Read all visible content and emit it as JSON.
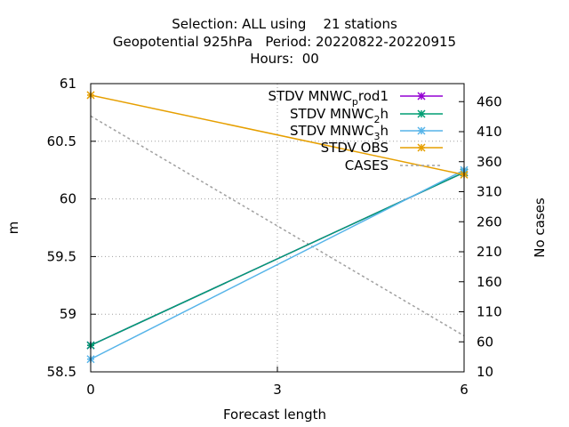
{
  "title": {
    "line1": "Selection: ALL using    21 stations",
    "line2": "Geopotential 925hPa   Period: 20220822-20220915",
    "line3": "Hours:  00"
  },
  "chart_data": {
    "type": "line",
    "xlabel": "Forecast length",
    "ylabel": "m",
    "y2label": "No cases",
    "xlim": [
      0,
      6
    ],
    "ylim": [
      58.5,
      61
    ],
    "y2lim": [
      10,
      490
    ],
    "x_ticks": [
      "0",
      "3",
      "6"
    ],
    "y_ticks": [
      "58.5",
      "59",
      "59.5",
      "60",
      "60.5",
      "61"
    ],
    "y2_ticks": [
      "10",
      "60",
      "110",
      "160",
      "210",
      "260",
      "310",
      "360",
      "410",
      "460"
    ],
    "grid": true,
    "legend_position": "top-right",
    "series": [
      {
        "name": "STDV MNWC_prod1",
        "name_main": "STDV MNWC",
        "name_sub": "p",
        "name_rest": "rod1",
        "axis": "y1",
        "color": "#9400d3",
        "marker": "x",
        "x": [
          0,
          6
        ],
        "values": [
          58.73,
          60.23
        ]
      },
      {
        "name": "STDV MNWC_2h",
        "name_main": "STDV MNWC",
        "name_sub": "2",
        "name_rest": "h",
        "axis": "y1",
        "color": "#009e73",
        "marker": "x",
        "x": [
          0,
          6
        ],
        "values": [
          58.73,
          60.23
        ]
      },
      {
        "name": "STDV MNWC_3h",
        "name_main": "STDV MNWC",
        "name_sub": "3",
        "name_rest": "h",
        "axis": "y1",
        "color": "#56b4e9",
        "marker": "x",
        "x": [
          0,
          6
        ],
        "values": [
          58.61,
          60.25
        ]
      },
      {
        "name": "STDV OBS",
        "name_main": "STDV OBS",
        "name_sub": "",
        "name_rest": "",
        "axis": "y1",
        "color": "#e69f00",
        "marker": "x",
        "x": [
          0,
          6
        ],
        "values": [
          60.9,
          60.21
        ]
      },
      {
        "name": "CASES",
        "name_main": "CASES",
        "name_sub": "",
        "name_rest": "",
        "axis": "y2",
        "color": "#a0a0a0",
        "marker": "none",
        "dashed": true,
        "x": [
          0,
          6
        ],
        "values": [
          436,
          70
        ]
      }
    ]
  }
}
